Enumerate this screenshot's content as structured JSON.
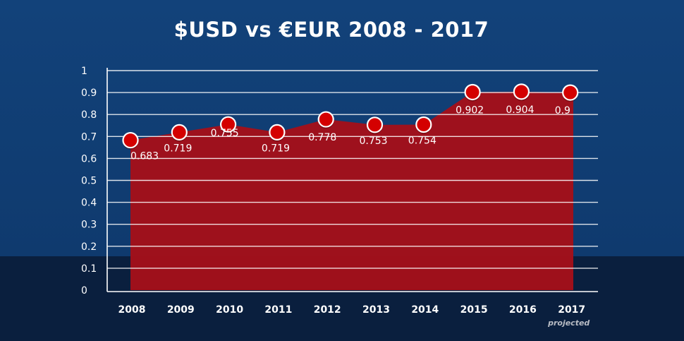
{
  "chart_data": {
    "type": "area",
    "title": "$USD vs €EUR 2008 - 2017",
    "categories": [
      "2008",
      "2009",
      "2010",
      "2011",
      "2012",
      "2013",
      "2014",
      "2015",
      "2016",
      "2017"
    ],
    "values": [
      0.683,
      0.719,
      0.755,
      0.719,
      0.778,
      0.753,
      0.754,
      0.902,
      0.904,
      0.9
    ],
    "data_labels": [
      "0.683",
      "0.719",
      "0.755",
      "0.719",
      "0.778",
      "0.753",
      "0.754",
      "0.902",
      "0.904",
      "0.9"
    ],
    "ylim": [
      0,
      1
    ],
    "yticks": [
      "0",
      "0.1",
      "0.2",
      "0.3",
      "0.4",
      "0.5",
      "0.6",
      "0.7",
      "0.8",
      "0.9",
      "1"
    ],
    "grid": true,
    "annotations": [
      {
        "category": "2017",
        "text": "projected"
      }
    ],
    "colors": {
      "area": "#a30f1a",
      "marker": "#d40000",
      "marker_stroke": "#ffffff",
      "grid": "#ffffff"
    }
  }
}
